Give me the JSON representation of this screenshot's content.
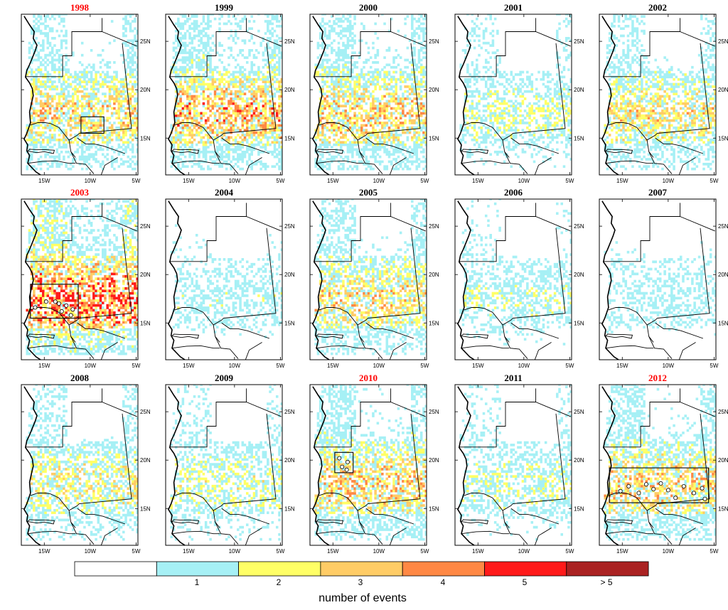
{
  "chart_data": {
    "type": "heatmap",
    "map_region": {
      "lon_range": [
        -17.5,
        -4.8
      ],
      "lat_range": [
        11.2,
        27.8
      ]
    },
    "x_ticks": [
      {
        "value": -15,
        "label": "15W"
      },
      {
        "value": -10,
        "label": "10W"
      },
      {
        "value": -5,
        "label": "5W"
      }
    ],
    "y_ticks": [
      {
        "value": 15,
        "label": "15N"
      },
      {
        "value": 20,
        "label": "20N"
      },
      {
        "value": 25,
        "label": "25N"
      }
    ],
    "colors": {
      "highlight_title": "#ff0000",
      "normal_title": "#000000",
      "bins": [
        "#ffffff",
        "#a6f0f5",
        "#ffff66",
        "#ffcc66",
        "#ff8844",
        "#ff1a1a",
        "#aa2222"
      ]
    },
    "colorbar": {
      "labels": [
        "1",
        "2",
        "3",
        "4",
        "5",
        "> 5"
      ],
      "title": "number of events"
    },
    "panels": [
      {
        "year": "1998",
        "highlight": true,
        "intensity": 1.5,
        "boxes": [
          {
            "lon": [
              -11.0,
              -8.5
            ],
            "lat": [
              15.5,
              17.2
            ]
          }
        ],
        "circles": []
      },
      {
        "year": "1999",
        "highlight": false,
        "intensity": 1.8,
        "boxes": [],
        "circles": []
      },
      {
        "year": "2000",
        "highlight": false,
        "intensity": 1.6,
        "boxes": [],
        "circles": []
      },
      {
        "year": "2001",
        "highlight": false,
        "intensity": 1.0,
        "boxes": [],
        "circles": []
      },
      {
        "year": "2002",
        "highlight": false,
        "intensity": 1.4,
        "boxes": [],
        "circles": []
      },
      {
        "year": "2003",
        "highlight": true,
        "intensity": 2.3,
        "boxes": [
          {
            "lon": [
              -16.5,
              -11.3
            ],
            "lat": [
              15.5,
              19.0
            ]
          }
        ],
        "circles": [
          [
            -16.0,
            16.6
          ],
          [
            -14.8,
            17.2
          ],
          [
            -13.8,
            17.2
          ],
          [
            -13.4,
            17.0
          ],
          [
            -12.6,
            16.8
          ],
          [
            -13.1,
            16.2
          ],
          [
            -11.9,
            16.4
          ],
          [
            -12.1,
            15.8
          ]
        ]
      },
      {
        "year": "2004",
        "highlight": false,
        "intensity": 0.75,
        "boxes": [],
        "circles": []
      },
      {
        "year": "2005",
        "highlight": false,
        "intensity": 1.45,
        "boxes": [],
        "circles": []
      },
      {
        "year": "2006",
        "highlight": false,
        "intensity": 0.85,
        "boxes": [],
        "circles": []
      },
      {
        "year": "2007",
        "highlight": false,
        "intensity": 0.7,
        "boxes": [],
        "circles": []
      },
      {
        "year": "2008",
        "highlight": false,
        "intensity": 1.25,
        "boxes": [],
        "circles": []
      },
      {
        "year": "2009",
        "highlight": false,
        "intensity": 1.05,
        "boxes": [],
        "circles": []
      },
      {
        "year": "2010",
        "highlight": true,
        "intensity": 1.6,
        "boxes": [
          {
            "lon": [
              -14.8,
              -12.8
            ],
            "lat": [
              18.7,
              20.8
            ]
          }
        ],
        "circles": [
          [
            -14.3,
            20.2
          ],
          [
            -13.4,
            19.8
          ],
          [
            -14.0,
            19.3
          ],
          [
            -13.5,
            19.0
          ]
        ]
      },
      {
        "year": "2011",
        "highlight": false,
        "intensity": 0.95,
        "boxes": [],
        "circles": []
      },
      {
        "year": "2012",
        "highlight": true,
        "intensity": 1.55,
        "boxes": [
          {
            "lon": [
              -16.4,
              -5.6
            ],
            "lat": [
              15.6,
              19.2
            ]
          }
        ],
        "circles": [
          [
            -15.2,
            16.8
          ],
          [
            -13.2,
            16.6
          ],
          [
            -12.4,
            17.5
          ],
          [
            -11.6,
            17.0
          ],
          [
            -10.8,
            17.6
          ],
          [
            -10.0,
            16.9
          ],
          [
            -9.2,
            16.1
          ],
          [
            -8.3,
            17.3
          ],
          [
            -7.2,
            16.6
          ],
          [
            -6.3,
            17.1
          ],
          [
            -6.0,
            16.0
          ],
          [
            -14.3,
            17.3
          ]
        ]
      }
    ]
  }
}
